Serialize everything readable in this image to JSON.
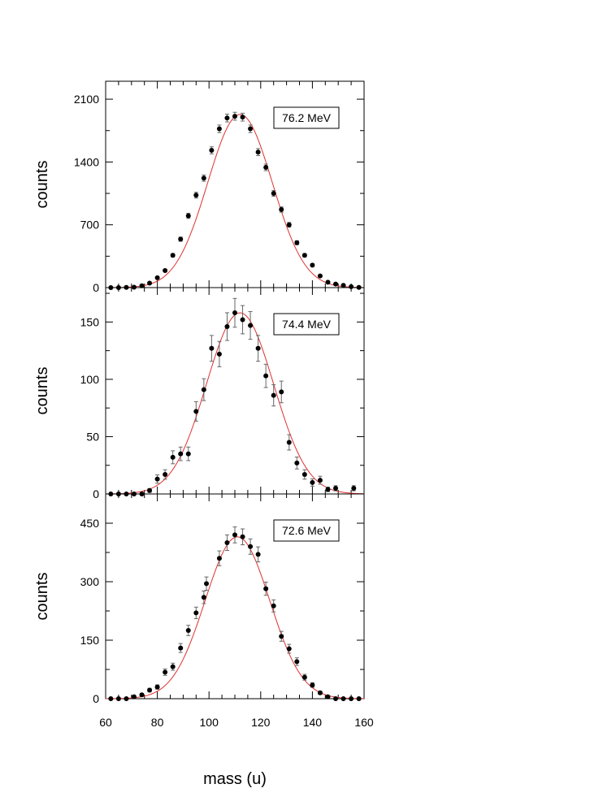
{
  "figure": {
    "xlabel": "mass (u)",
    "line_color": "#e03030",
    "point_color": "#000000",
    "errorbar_color": "#666666"
  },
  "chart_data": [
    {
      "type": "scatter",
      "label": "76.2 MeV",
      "ylabel": "counts",
      "xlim": [
        60,
        160
      ],
      "ylim": [
        0,
        2300
      ],
      "yticks": [
        0,
        700,
        1400,
        2100
      ],
      "fit": {
        "amplitude": 1930,
        "mean": 112,
        "sigma": 12.5
      },
      "points": [
        [
          62,
          0
        ],
        [
          65,
          0
        ],
        [
          68,
          2
        ],
        [
          71,
          5
        ],
        [
          74,
          20
        ],
        [
          77,
          50
        ],
        [
          80,
          110
        ],
        [
          83,
          190
        ],
        [
          86,
          360
        ],
        [
          89,
          540
        ],
        [
          92,
          800
        ],
        [
          95,
          1030
        ],
        [
          98,
          1220
        ],
        [
          101,
          1530
        ],
        [
          104,
          1770
        ],
        [
          107,
          1890
        ],
        [
          110,
          1910
        ],
        [
          113,
          1900
        ],
        [
          116,
          1770
        ],
        [
          119,
          1510
        ],
        [
          122,
          1340
        ],
        [
          125,
          1050
        ],
        [
          128,
          870
        ],
        [
          131,
          700
        ],
        [
          134,
          500
        ],
        [
          137,
          360
        ],
        [
          140,
          250
        ],
        [
          143,
          130
        ],
        [
          146,
          60
        ],
        [
          149,
          40
        ],
        [
          152,
          25
        ],
        [
          155,
          10
        ],
        [
          158,
          2
        ]
      ]
    },
    {
      "type": "scatter",
      "label": "74.4 MeV",
      "ylabel": "counts",
      "xlim": [
        60,
        160
      ],
      "ylim": [
        0,
        180
      ],
      "yticks": [
        0,
        50,
        100,
        150
      ],
      "fit": {
        "amplitude": 158,
        "mean": 112,
        "sigma": 13
      },
      "points": [
        [
          62,
          0
        ],
        [
          65,
          0
        ],
        [
          68,
          0
        ],
        [
          71,
          0
        ],
        [
          74,
          0
        ],
        [
          77,
          3
        ],
        [
          80,
          13
        ],
        [
          83,
          17
        ],
        [
          86,
          32
        ],
        [
          89,
          35
        ],
        [
          92,
          35
        ],
        [
          95,
          72
        ],
        [
          98,
          91
        ],
        [
          101,
          127
        ],
        [
          104,
          122
        ],
        [
          107,
          146
        ],
        [
          110,
          158
        ],
        [
          113,
          152
        ],
        [
          116,
          147
        ],
        [
          119,
          127
        ],
        [
          122,
          103
        ],
        [
          125,
          86
        ],
        [
          128,
          89
        ],
        [
          131,
          45
        ],
        [
          134,
          27
        ],
        [
          137,
          17
        ],
        [
          140,
          10
        ],
        [
          143,
          12
        ],
        [
          146,
          4
        ],
        [
          149,
          5
        ],
        [
          156,
          5
        ]
      ]
    },
    {
      "type": "scatter",
      "label": "72.6 MeV",
      "ylabel": "counts",
      "xlim": [
        60,
        160
      ],
      "ylim": [
        0,
        525
      ],
      "yticks": [
        0,
        150,
        300,
        450
      ],
      "fit": {
        "amplitude": 415,
        "mean": 111,
        "sigma": 12.5
      },
      "points": [
        [
          62,
          0
        ],
        [
          65,
          0
        ],
        [
          68,
          0
        ],
        [
          71,
          5
        ],
        [
          74,
          10
        ],
        [
          77,
          22
        ],
        [
          80,
          30
        ],
        [
          83,
          68
        ],
        [
          86,
          82
        ],
        [
          89,
          130
        ],
        [
          92,
          175
        ],
        [
          95,
          220
        ],
        [
          98,
          260
        ],
        [
          99,
          295
        ],
        [
          104,
          360
        ],
        [
          107,
          400
        ],
        [
          110,
          420
        ],
        [
          113,
          415
        ],
        [
          116,
          390
        ],
        [
          119,
          370
        ],
        [
          122,
          282
        ],
        [
          125,
          238
        ],
        [
          128,
          160
        ],
        [
          131,
          128
        ],
        [
          134,
          95
        ],
        [
          137,
          55
        ],
        [
          140,
          35
        ],
        [
          143,
          15
        ],
        [
          146,
          5
        ],
        [
          149,
          0
        ],
        [
          152,
          0
        ],
        [
          155,
          0
        ],
        [
          158,
          0
        ]
      ]
    }
  ],
  "x_axis": {
    "ticks": [
      60,
      80,
      100,
      120,
      140,
      160
    ]
  }
}
